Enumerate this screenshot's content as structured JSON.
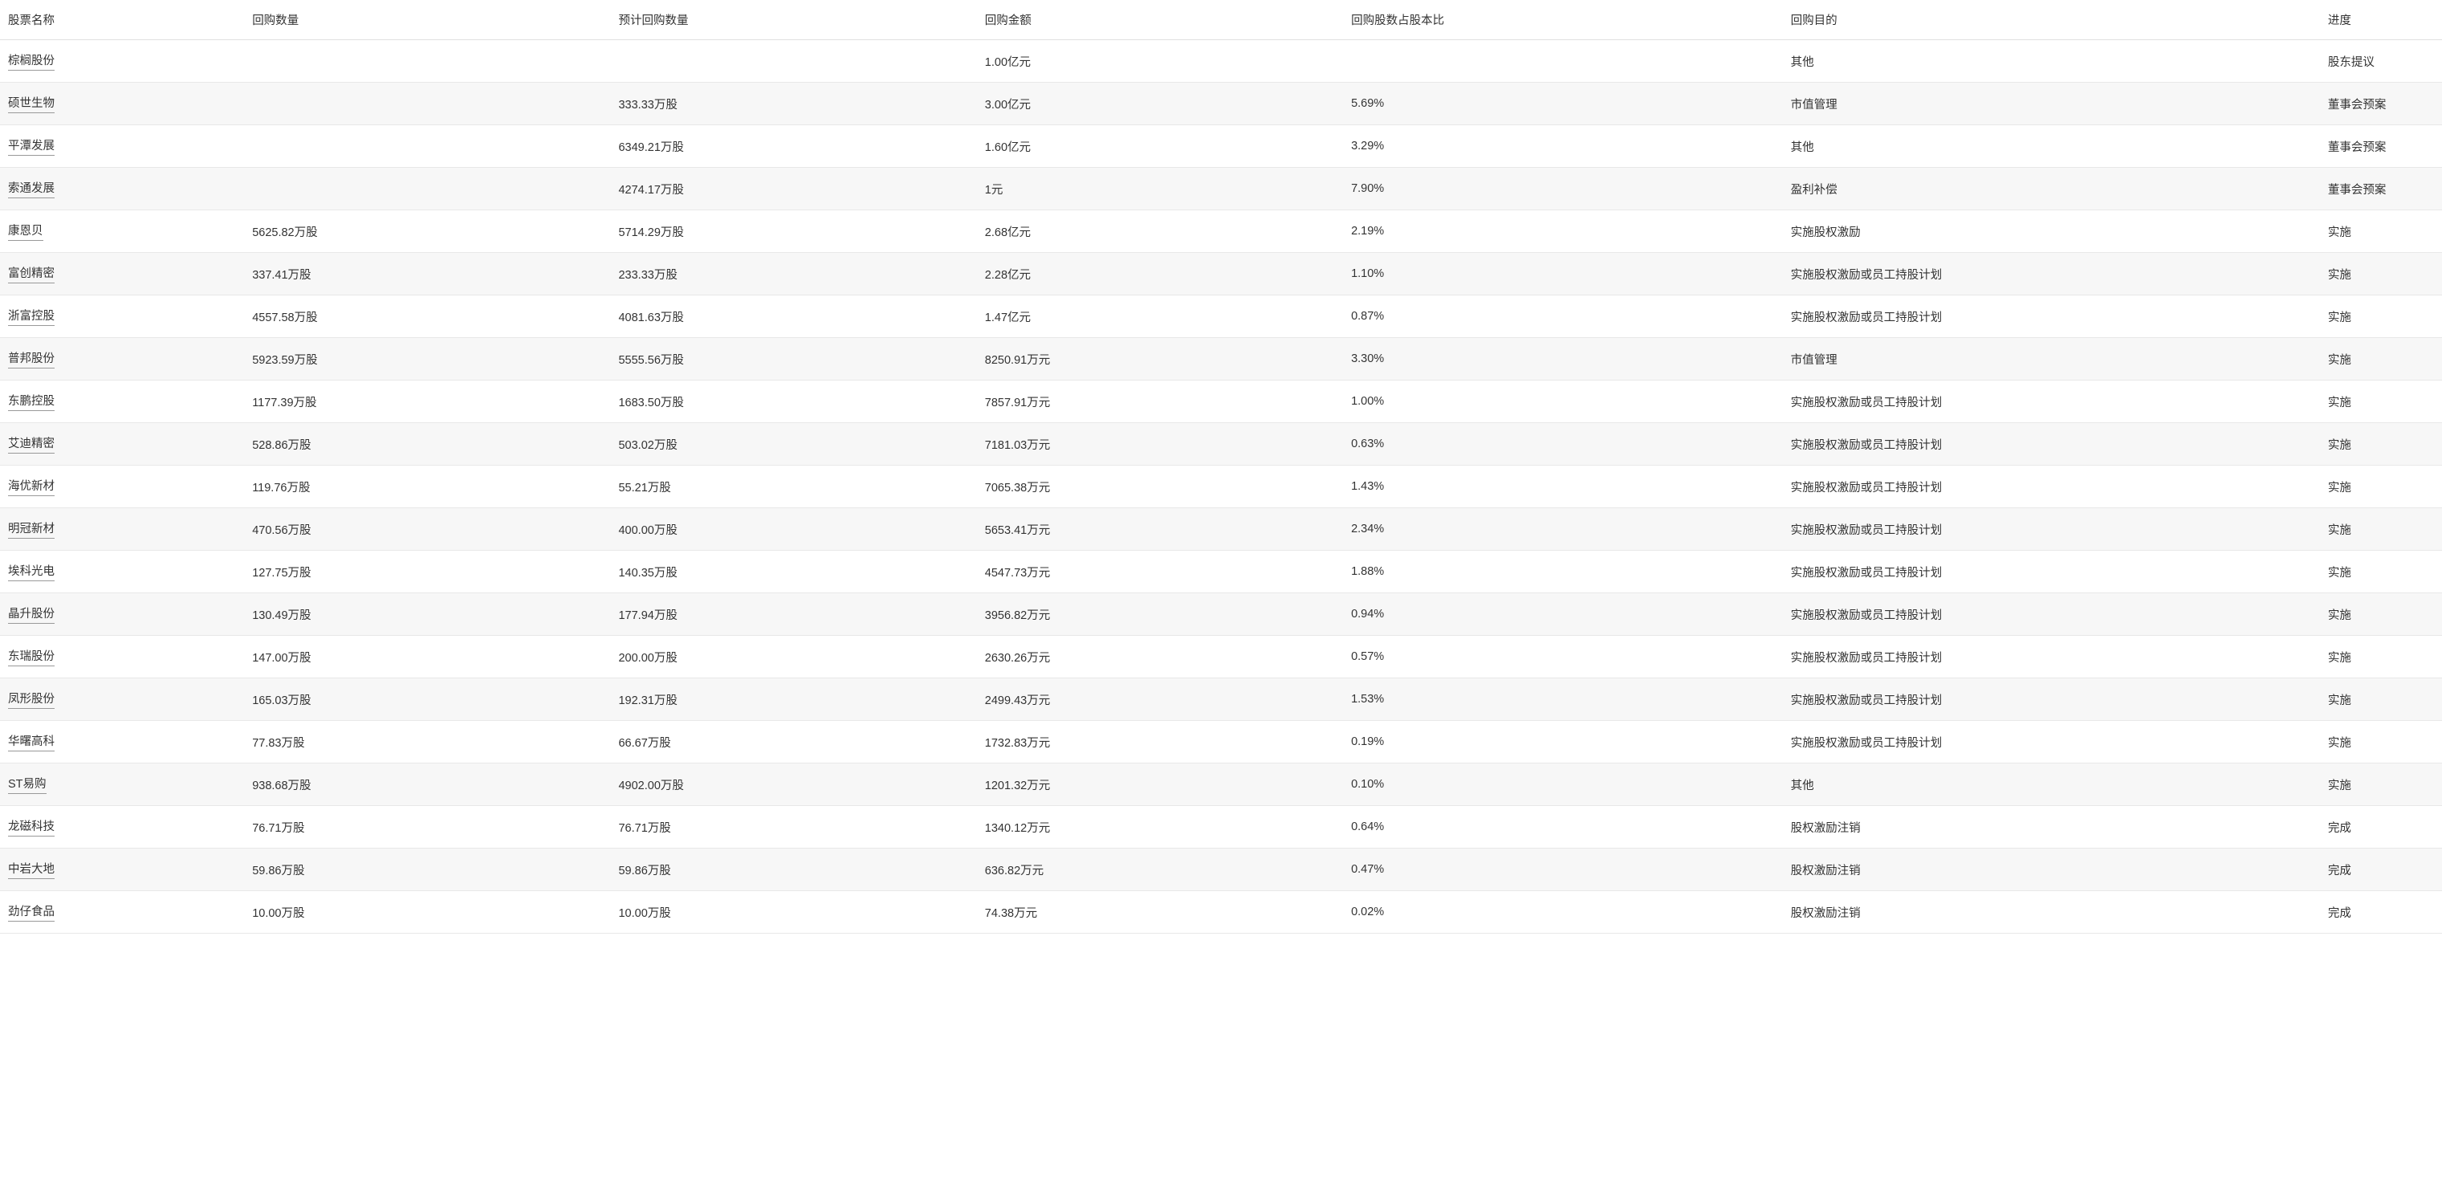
{
  "table": {
    "columns": [
      "股票名称",
      "回购数量",
      "预计回购数量",
      "回购金额",
      "回购股数占股本比",
      "回购目的",
      "进度"
    ],
    "rows": [
      [
        "棕榈股份",
        "",
        "",
        "1.00亿元",
        "",
        "其他",
        "股东提议"
      ],
      [
        "硕世生物",
        "",
        "333.33万股",
        "3.00亿元",
        "5.69%",
        "市值管理",
        "董事会预案"
      ],
      [
        "平潭发展",
        "",
        "6349.21万股",
        "1.60亿元",
        "3.29%",
        "其他",
        "董事会预案"
      ],
      [
        "索通发展",
        "",
        "4274.17万股",
        "1元",
        "7.90%",
        "盈利补偿",
        "董事会预案"
      ],
      [
        "康恩贝",
        "5625.82万股",
        "5714.29万股",
        "2.68亿元",
        "2.19%",
        "实施股权激励",
        "实施"
      ],
      [
        "富创精密",
        "337.41万股",
        "233.33万股",
        "2.28亿元",
        "1.10%",
        "实施股权激励或员工持股计划",
        "实施"
      ],
      [
        "浙富控股",
        "4557.58万股",
        "4081.63万股",
        "1.47亿元",
        "0.87%",
        "实施股权激励或员工持股计划",
        "实施"
      ],
      [
        "普邦股份",
        "5923.59万股",
        "5555.56万股",
        "8250.91万元",
        "3.30%",
        "市值管理",
        "实施"
      ],
      [
        "东鹏控股",
        "1177.39万股",
        "1683.50万股",
        "7857.91万元",
        "1.00%",
        "实施股权激励或员工持股计划",
        "实施"
      ],
      [
        "艾迪精密",
        "528.86万股",
        "503.02万股",
        "7181.03万元",
        "0.63%",
        "实施股权激励或员工持股计划",
        "实施"
      ],
      [
        "海优新材",
        "119.76万股",
        "55.21万股",
        "7065.38万元",
        "1.43%",
        "实施股权激励或员工持股计划",
        "实施"
      ],
      [
        "明冠新材",
        "470.56万股",
        "400.00万股",
        "5653.41万元",
        "2.34%",
        "实施股权激励或员工持股计划",
        "实施"
      ],
      [
        "埃科光电",
        "127.75万股",
        "140.35万股",
        "4547.73万元",
        "1.88%",
        "实施股权激励或员工持股计划",
        "实施"
      ],
      [
        "晶升股份",
        "130.49万股",
        "177.94万股",
        "3956.82万元",
        "0.94%",
        "实施股权激励或员工持股计划",
        "实施"
      ],
      [
        "东瑞股份",
        "147.00万股",
        "200.00万股",
        "2630.26万元",
        "0.57%",
        "实施股权激励或员工持股计划",
        "实施"
      ],
      [
        "凤形股份",
        "165.03万股",
        "192.31万股",
        "2499.43万元",
        "1.53%",
        "实施股权激励或员工持股计划",
        "实施"
      ],
      [
        "华曙高科",
        "77.83万股",
        "66.67万股",
        "1732.83万元",
        "0.19%",
        "实施股权激励或员工持股计划",
        "实施"
      ],
      [
        "ST易购",
        "938.68万股",
        "4902.00万股",
        "1201.32万元",
        "0.10%",
        "其他",
        "实施"
      ],
      [
        "龙磁科技",
        "76.71万股",
        "76.71万股",
        "1340.12万元",
        "0.64%",
        "股权激励注销",
        "完成"
      ],
      [
        "中岩大地",
        "59.86万股",
        "59.86万股",
        "636.82万元",
        "0.47%",
        "股权激励注销",
        "完成"
      ],
      [
        "劲仔食品",
        "10.00万股",
        "10.00万股",
        "74.38万元",
        "0.02%",
        "股权激励注销",
        "完成"
      ]
    ],
    "styling": {
      "header_bg": "#ffffff",
      "row_even_bg": "#f7f7f7",
      "row_odd_bg": "#ffffff",
      "border_color": "#e8e8e8",
      "text_color": "#333333",
      "font_size": 14.5,
      "stock_name_underline": true
    }
  }
}
